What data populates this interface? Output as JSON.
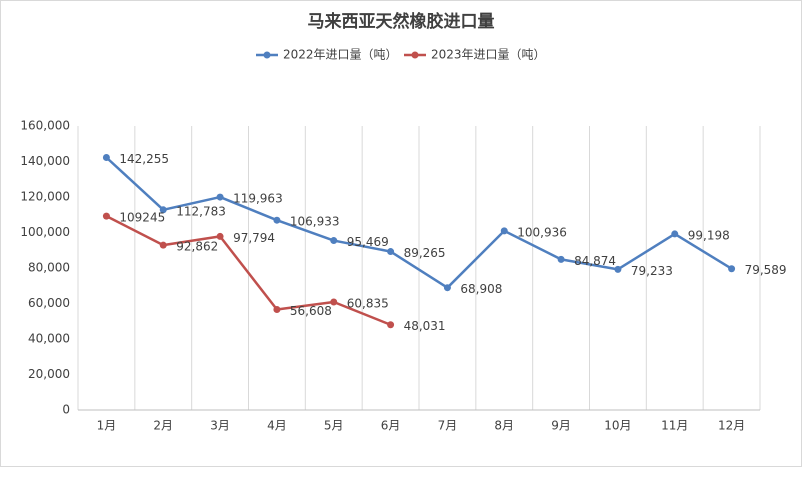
{
  "chart_data": {
    "type": "line",
    "title": "马来西亚天然橡胶进口量",
    "categories": [
      "1月",
      "2月",
      "3月",
      "4月",
      "5月",
      "6月",
      "7月",
      "8月",
      "9月",
      "10月",
      "11月",
      "12月"
    ],
    "series": [
      {
        "name": "2022年进口量（吨）",
        "color": "#4f7fbf",
        "values": [
          142255,
          112783,
          119963,
          106933,
          95469,
          89265,
          68908,
          100936,
          84874,
          79233,
          99198,
          79589
        ],
        "value_labels": [
          "142,255",
          "112,783",
          "119,963",
          "106,933",
          "95,469",
          "89,265",
          "68,908",
          "100,936",
          "84,874",
          "79,233",
          "99,198",
          "79,589"
        ]
      },
      {
        "name": "2023年进口量（吨）",
        "color": "#c0504d",
        "values": [
          109245,
          92862,
          97794,
          56608,
          60835,
          48031,
          null,
          null,
          null,
          null,
          null,
          null
        ],
        "value_labels": [
          "109245",
          "92,862",
          "97,794",
          "56,608",
          "60,835",
          "48,031",
          null,
          null,
          null,
          null,
          null,
          null
        ]
      }
    ],
    "ylim": [
      0,
      160000
    ],
    "yticks": [
      0,
      {
        "value": 20000,
        "label": "20,000"
      },
      {
        "value": 40000,
        "label": "40,000"
      },
      {
        "value": 60000,
        "label": "60,000"
      },
      {
        "value": 80000,
        "label": "80,000"
      },
      {
        "value": 100000,
        "label": "100,000"
      },
      {
        "value": 120000,
        "label": "120,000"
      },
      {
        "value": 140000,
        "label": "140,000"
      },
      {
        "value": 160000,
        "label": "160,000"
      }
    ],
    "grid": true,
    "legend": "top"
  }
}
